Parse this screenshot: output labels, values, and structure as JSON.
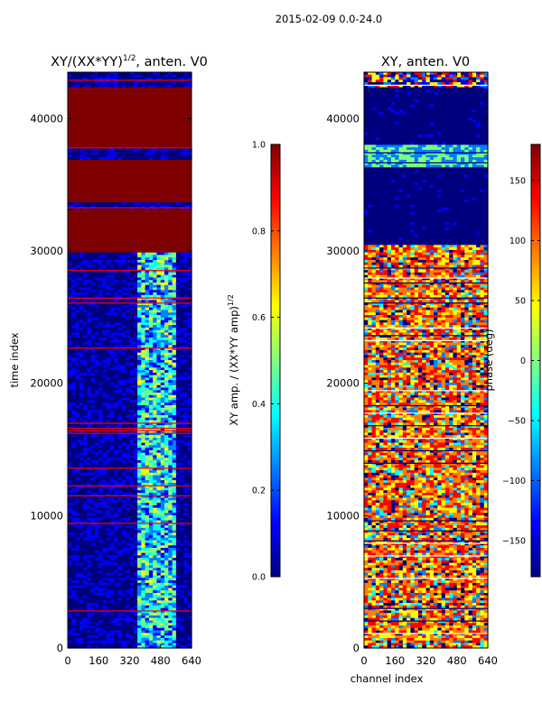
{
  "suptitle": "2015-02-09 0.0-24.0",
  "chart_data": [
    {
      "type": "heatmap",
      "title": "XY/(XX*YY)",
      "title_exponent": "1/2",
      "title_suffix": ", anten. V0",
      "xlabel": "",
      "ylabel": "time index",
      "xlim": [
        0,
        640
      ],
      "ylim": [
        0,
        43500
      ],
      "xticks": [
        "0",
        "160",
        "320",
        "480",
        "640"
      ],
      "yticks": [
        "0",
        "10000",
        "20000",
        "30000",
        "40000"
      ],
      "colorbar": {
        "label": "XY amp. / (XX*YY amp)",
        "label_exponent": "1/2",
        "range": [
          0.0,
          1.0
        ],
        "ticks": [
          "0.0",
          "0.2",
          "0.4",
          "0.6",
          "0.8",
          "1.0"
        ],
        "colormap": "jet"
      }
    },
    {
      "type": "heatmap",
      "title": "XY, anten. V0",
      "xlabel": "channel index",
      "ylabel": "",
      "xlim": [
        0,
        640
      ],
      "ylim": [
        0,
        43500
      ],
      "xticks": [
        "0",
        "160",
        "320",
        "480",
        "640"
      ],
      "yticks": [
        "0",
        "10000",
        "20000",
        "30000",
        "40000"
      ],
      "colorbar": {
        "label": "phase (deg)",
        "range": [
          -180,
          180
        ],
        "ticks": [
          "−150",
          "−100",
          "−50",
          "0",
          "50",
          "100",
          "150"
        ],
        "colormap": "jet"
      }
    }
  ],
  "colors": {
    "jet_0": "#00007f",
    "jet_1": "#0000ff",
    "jet_2": "#007fff",
    "jet_3": "#00ffff",
    "jet_4": "#7fff7f",
    "jet_5": "#ffff00",
    "jet_6": "#ff7f00",
    "jet_7": "#ff0000",
    "jet_8": "#7f0000"
  }
}
